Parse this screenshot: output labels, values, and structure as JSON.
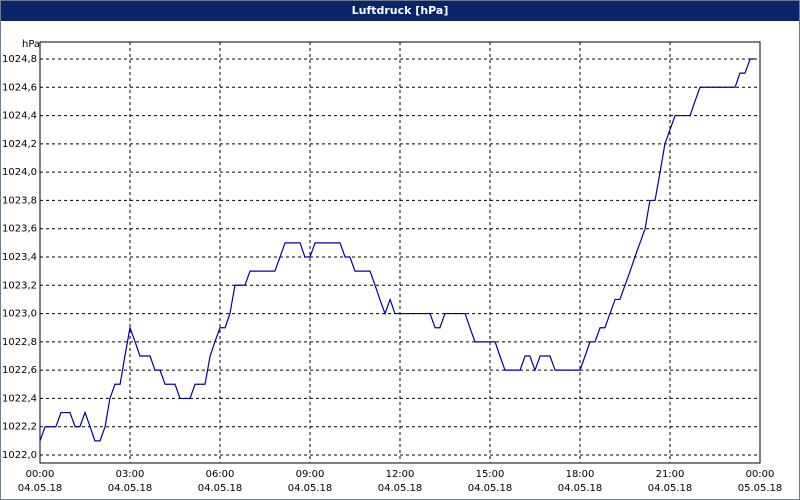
{
  "chart_data": {
    "type": "line",
    "title": "Luftdruck [hPa]",
    "y_label": "hPa",
    "xlim": [
      0,
      24
    ],
    "ylim": [
      1022.0,
      1024.8
    ],
    "grid": true,
    "xticks": [
      {
        "value": 0,
        "label": "00:00",
        "date": "04.05.18"
      },
      {
        "value": 3,
        "label": "03:00",
        "date": "04.05.18"
      },
      {
        "value": 6,
        "label": "06:00",
        "date": "04.05.18"
      },
      {
        "value": 9,
        "label": "09:00",
        "date": "04.05.18"
      },
      {
        "value": 12,
        "label": "12:00",
        "date": "04.05.18"
      },
      {
        "value": 15,
        "label": "15:00",
        "date": "04.05.18"
      },
      {
        "value": 18,
        "label": "18:00",
        "date": "04.05.18"
      },
      {
        "value": 21,
        "label": "21:00",
        "date": "04.05.18"
      },
      {
        "value": 24,
        "label": "00:00",
        "date": "05.05.18"
      }
    ],
    "yticks": [
      {
        "value": 1022.0,
        "label": "1022,0"
      },
      {
        "value": 1022.2,
        "label": "1022,2"
      },
      {
        "value": 1022.4,
        "label": "1022,4"
      },
      {
        "value": 1022.6,
        "label": "1022,6"
      },
      {
        "value": 1022.8,
        "label": "1022,8"
      },
      {
        "value": 1023.0,
        "label": "1023,0"
      },
      {
        "value": 1023.2,
        "label": "1023,2"
      },
      {
        "value": 1023.4,
        "label": "1023,4"
      },
      {
        "value": 1023.6,
        "label": "1023,6"
      },
      {
        "value": 1023.8,
        "label": "1023,8"
      },
      {
        "value": 1024.0,
        "label": "1024,0"
      },
      {
        "value": 1024.2,
        "label": "1024,2"
      },
      {
        "value": 1024.4,
        "label": "1024,4"
      },
      {
        "value": 1024.6,
        "label": "1024,6"
      },
      {
        "value": 1024.8,
        "label": "1024,8"
      }
    ],
    "series": [
      {
        "color": "#0000a0",
        "x": [
          0,
          0.17,
          0.53,
          0.7,
          1.0,
          1.17,
          1.33,
          1.5,
          1.67,
          1.83,
          2.0,
          2.17,
          2.33,
          2.5,
          2.67,
          2.83,
          3.0,
          3.17,
          3.33,
          3.67,
          3.83,
          4.0,
          4.17,
          4.5,
          4.67,
          5.0,
          5.17,
          5.5,
          5.67,
          5.83,
          6.0,
          6.17,
          6.33,
          6.5,
          6.83,
          7.0,
          7.83,
          8.0,
          8.17,
          8.67,
          8.83,
          9.0,
          9.17,
          10.0,
          10.17,
          10.33,
          10.5,
          11.0,
          11.17,
          11.33,
          11.5,
          11.67,
          11.83,
          13.0,
          13.17,
          13.33,
          13.5,
          14.17,
          14.33,
          14.5,
          15.17,
          15.33,
          15.5,
          16.0,
          16.17,
          16.33,
          16.5,
          16.67,
          17.0,
          17.17,
          18.0,
          18.17,
          18.33,
          18.5,
          18.67,
          18.83,
          19.0,
          19.17,
          19.33,
          19.5,
          19.67,
          19.83,
          20.0,
          20.17,
          20.33,
          20.5,
          20.67,
          20.83,
          21.0,
          21.17,
          21.67,
          21.83,
          22.0,
          23.17,
          23.33,
          23.5,
          23.67,
          23.83
        ],
        "values": [
          1022.1,
          1022.2,
          1022.2,
          1022.3,
          1022.3,
          1022.2,
          1022.2,
          1022.3,
          1022.2,
          1022.1,
          1022.1,
          1022.2,
          1022.4,
          1022.5,
          1022.5,
          1022.7,
          1022.9,
          1022.8,
          1022.7,
          1022.7,
          1022.6,
          1022.6,
          1022.5,
          1022.5,
          1022.4,
          1022.4,
          1022.5,
          1022.5,
          1022.7,
          1022.8,
          1022.9,
          1022.9,
          1023.0,
          1023.2,
          1023.2,
          1023.3,
          1023.3,
          1023.4,
          1023.5,
          1023.5,
          1023.4,
          1023.4,
          1023.5,
          1023.5,
          1023.4,
          1023.4,
          1023.3,
          1023.3,
          1023.2,
          1023.1,
          1023.0,
          1023.1,
          1023.0,
          1023.0,
          1022.9,
          1022.9,
          1023.0,
          1023.0,
          1022.9,
          1022.8,
          1022.8,
          1022.7,
          1022.6,
          1022.6,
          1022.7,
          1022.7,
          1022.6,
          1022.7,
          1022.7,
          1022.6,
          1022.6,
          1022.7,
          1022.8,
          1022.8,
          1022.9,
          1022.9,
          1023.0,
          1023.1,
          1023.1,
          1023.2,
          1023.3,
          1023.4,
          1023.5,
          1023.6,
          1023.8,
          1023.8,
          1024.0,
          1024.2,
          1024.3,
          1024.4,
          1024.4,
          1024.5,
          1024.6,
          1024.6,
          1024.7,
          1024.7,
          1024.8,
          1024.8
        ]
      }
    ]
  }
}
